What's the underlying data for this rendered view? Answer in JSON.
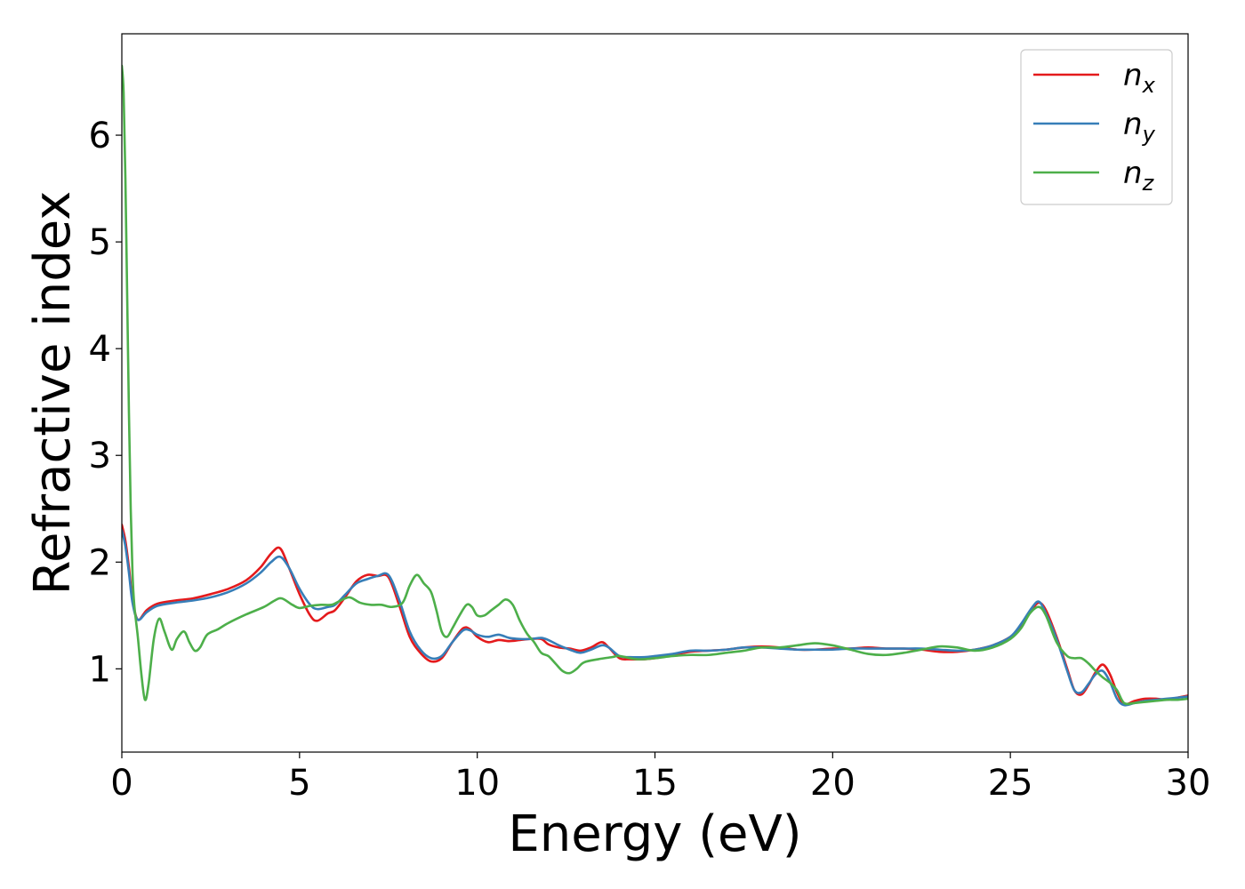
{
  "chart_data": {
    "type": "line",
    "xlabel": "Energy (eV)",
    "ylabel": "Refractive index",
    "xlim": [
      0,
      30
    ],
    "ylim": [
      0.22,
      6.95
    ],
    "xticks": [
      0,
      5,
      10,
      15,
      20,
      25,
      30
    ],
    "xtick_labels": [
      "0",
      "5",
      "10",
      "15",
      "20",
      "25",
      "30"
    ],
    "yticks": [
      1,
      2,
      3,
      4,
      5,
      6
    ],
    "ytick_labels": [
      "1",
      "2",
      "3",
      "4",
      "5",
      "6"
    ],
    "grid": false,
    "legend_position": "top-right",
    "series": [
      {
        "name": "n_x",
        "legend_base": "n",
        "legend_sub": "x",
        "color": "#e41a1c",
        "x": [
          0,
          0.1,
          0.2,
          0.3,
          0.45,
          0.7,
          1.0,
          1.5,
          2.0,
          2.5,
          3.0,
          3.5,
          3.9,
          4.2,
          4.45,
          4.7,
          5.0,
          5.3,
          5.5,
          5.8,
          6.0,
          6.3,
          6.6,
          6.9,
          7.2,
          7.5,
          7.8,
          8.1,
          8.4,
          8.7,
          9.0,
          9.3,
          9.6,
          9.8,
          10.0,
          10.3,
          10.6,
          10.9,
          11.2,
          11.5,
          11.8,
          12.0,
          12.3,
          12.6,
          12.9,
          13.2,
          13.5,
          13.7,
          14.0,
          14.3,
          14.7,
          15.0,
          15.5,
          16.0,
          16.5,
          17.0,
          17.5,
          18.0,
          18.5,
          19.0,
          19.5,
          20.0,
          20.5,
          21.0,
          21.5,
          22.0,
          22.5,
          23.0,
          23.5,
          24.0,
          24.5,
          25.0,
          25.3,
          25.6,
          25.8,
          26.0,
          26.3,
          26.6,
          26.8,
          27.0,
          27.2,
          27.4,
          27.6,
          27.8,
          28.0,
          28.2,
          28.5,
          28.8,
          29.1,
          29.4,
          29.7,
          30.0
        ],
        "y": [
          2.35,
          2.2,
          1.95,
          1.65,
          1.46,
          1.55,
          1.61,
          1.64,
          1.66,
          1.7,
          1.75,
          1.83,
          1.95,
          2.08,
          2.13,
          1.95,
          1.7,
          1.5,
          1.45,
          1.52,
          1.55,
          1.68,
          1.82,
          1.88,
          1.87,
          1.86,
          1.6,
          1.3,
          1.15,
          1.07,
          1.1,
          1.25,
          1.38,
          1.37,
          1.3,
          1.25,
          1.27,
          1.26,
          1.27,
          1.28,
          1.28,
          1.23,
          1.2,
          1.19,
          1.17,
          1.2,
          1.25,
          1.2,
          1.1,
          1.09,
          1.09,
          1.1,
          1.13,
          1.16,
          1.17,
          1.18,
          1.2,
          1.21,
          1.2,
          1.18,
          1.18,
          1.19,
          1.19,
          1.2,
          1.19,
          1.19,
          1.18,
          1.16,
          1.16,
          1.18,
          1.22,
          1.3,
          1.4,
          1.55,
          1.62,
          1.55,
          1.3,
          1.0,
          0.8,
          0.76,
          0.85,
          0.97,
          1.04,
          0.95,
          0.78,
          0.67,
          0.7,
          0.72,
          0.72,
          0.71,
          0.73,
          0.75
        ]
      },
      {
        "name": "n_y",
        "legend_base": "n",
        "legend_sub": "y",
        "color": "#377eb8",
        "x": [
          0,
          0.1,
          0.2,
          0.3,
          0.45,
          0.7,
          1.0,
          1.5,
          2.0,
          2.5,
          3.0,
          3.5,
          3.9,
          4.2,
          4.45,
          4.7,
          5.0,
          5.3,
          5.5,
          5.8,
          6.0,
          6.3,
          6.6,
          6.9,
          7.2,
          7.5,
          7.8,
          8.1,
          8.4,
          8.7,
          9.0,
          9.3,
          9.6,
          9.8,
          10.0,
          10.3,
          10.6,
          10.9,
          11.2,
          11.5,
          11.8,
          12.0,
          12.3,
          12.6,
          12.9,
          13.2,
          13.5,
          13.7,
          14.0,
          14.3,
          14.7,
          15.0,
          15.5,
          16.0,
          16.5,
          17.0,
          17.5,
          18.0,
          18.5,
          19.0,
          19.5,
          20.0,
          20.5,
          21.0,
          21.5,
          22.0,
          22.5,
          23.0,
          23.5,
          24.0,
          24.5,
          25.0,
          25.3,
          25.6,
          25.8,
          26.0,
          26.3,
          26.6,
          26.8,
          27.0,
          27.2,
          27.4,
          27.6,
          27.8,
          28.0,
          28.2,
          28.5,
          28.8,
          29.1,
          29.4,
          29.7,
          30.0
        ],
        "y": [
          2.3,
          2.15,
          1.9,
          1.62,
          1.46,
          1.53,
          1.59,
          1.62,
          1.64,
          1.67,
          1.72,
          1.8,
          1.9,
          2.0,
          2.05,
          1.95,
          1.75,
          1.6,
          1.56,
          1.58,
          1.6,
          1.7,
          1.8,
          1.84,
          1.87,
          1.88,
          1.65,
          1.35,
          1.18,
          1.1,
          1.12,
          1.25,
          1.36,
          1.36,
          1.32,
          1.3,
          1.32,
          1.29,
          1.28,
          1.28,
          1.29,
          1.27,
          1.22,
          1.18,
          1.15,
          1.18,
          1.22,
          1.2,
          1.12,
          1.11,
          1.11,
          1.12,
          1.14,
          1.17,
          1.17,
          1.18,
          1.2,
          1.2,
          1.19,
          1.18,
          1.18,
          1.18,
          1.19,
          1.19,
          1.19,
          1.19,
          1.19,
          1.18,
          1.17,
          1.18,
          1.22,
          1.3,
          1.42,
          1.57,
          1.63,
          1.52,
          1.28,
          0.98,
          0.8,
          0.78,
          0.86,
          0.95,
          0.98,
          0.88,
          0.72,
          0.66,
          0.68,
          0.7,
          0.71,
          0.72,
          0.73,
          0.74
        ]
      },
      {
        "name": "n_z",
        "legend_base": "n",
        "legend_sub": "z",
        "color": "#4daf4a",
        "x": [
          0,
          0.05,
          0.1,
          0.15,
          0.2,
          0.25,
          0.3,
          0.35,
          0.45,
          0.55,
          0.65,
          0.75,
          0.9,
          1.05,
          1.2,
          1.4,
          1.55,
          1.75,
          1.9,
          2.05,
          2.2,
          2.4,
          2.7,
          3.0,
          3.5,
          4.0,
          4.3,
          4.5,
          4.8,
          5.0,
          5.3,
          5.6,
          5.9,
          6.1,
          6.4,
          6.7,
          7.0,
          7.3,
          7.6,
          7.9,
          8.1,
          8.3,
          8.5,
          8.7,
          8.85,
          9.0,
          9.15,
          9.3,
          9.5,
          9.7,
          9.85,
          10.0,
          10.2,
          10.4,
          10.6,
          10.8,
          11.0,
          11.2,
          11.4,
          11.6,
          11.8,
          12.0,
          12.2,
          12.4,
          12.6,
          12.8,
          13.0,
          13.4,
          13.8,
          14.0,
          14.5,
          15.0,
          15.5,
          16.0,
          16.5,
          17.0,
          17.5,
          18.0,
          18.5,
          19.0,
          19.5,
          20.0,
          20.5,
          21.0,
          21.5,
          22.0,
          22.5,
          23.0,
          23.5,
          24.0,
          24.5,
          25.0,
          25.3,
          25.55,
          25.8,
          26.0,
          26.3,
          26.6,
          26.8,
          27.0,
          27.2,
          27.4,
          27.6,
          27.8,
          28.0,
          28.2,
          28.5,
          28.8,
          29.1,
          29.4,
          29.7,
          30.0
        ],
        "y": [
          6.65,
          6.4,
          5.6,
          4.5,
          3.4,
          2.5,
          1.9,
          1.6,
          1.3,
          0.95,
          0.71,
          0.85,
          1.28,
          1.47,
          1.35,
          1.18,
          1.28,
          1.35,
          1.25,
          1.17,
          1.2,
          1.32,
          1.37,
          1.43,
          1.51,
          1.58,
          1.64,
          1.66,
          1.6,
          1.57,
          1.59,
          1.6,
          1.6,
          1.63,
          1.67,
          1.62,
          1.6,
          1.6,
          1.58,
          1.62,
          1.78,
          1.88,
          1.8,
          1.72,
          1.55,
          1.35,
          1.3,
          1.38,
          1.5,
          1.6,
          1.58,
          1.5,
          1.5,
          1.55,
          1.6,
          1.65,
          1.6,
          1.45,
          1.33,
          1.25,
          1.15,
          1.12,
          1.05,
          0.98,
          0.96,
          1.0,
          1.06,
          1.09,
          1.11,
          1.12,
          1.09,
          1.1,
          1.12,
          1.13,
          1.13,
          1.15,
          1.17,
          1.2,
          1.2,
          1.22,
          1.24,
          1.22,
          1.18,
          1.14,
          1.13,
          1.15,
          1.18,
          1.21,
          1.2,
          1.17,
          1.2,
          1.28,
          1.38,
          1.52,
          1.58,
          1.5,
          1.25,
          1.12,
          1.1,
          1.1,
          1.05,
          0.98,
          0.92,
          0.87,
          0.8,
          0.68,
          0.68,
          0.69,
          0.7,
          0.71,
          0.71,
          0.72
        ]
      }
    ]
  }
}
